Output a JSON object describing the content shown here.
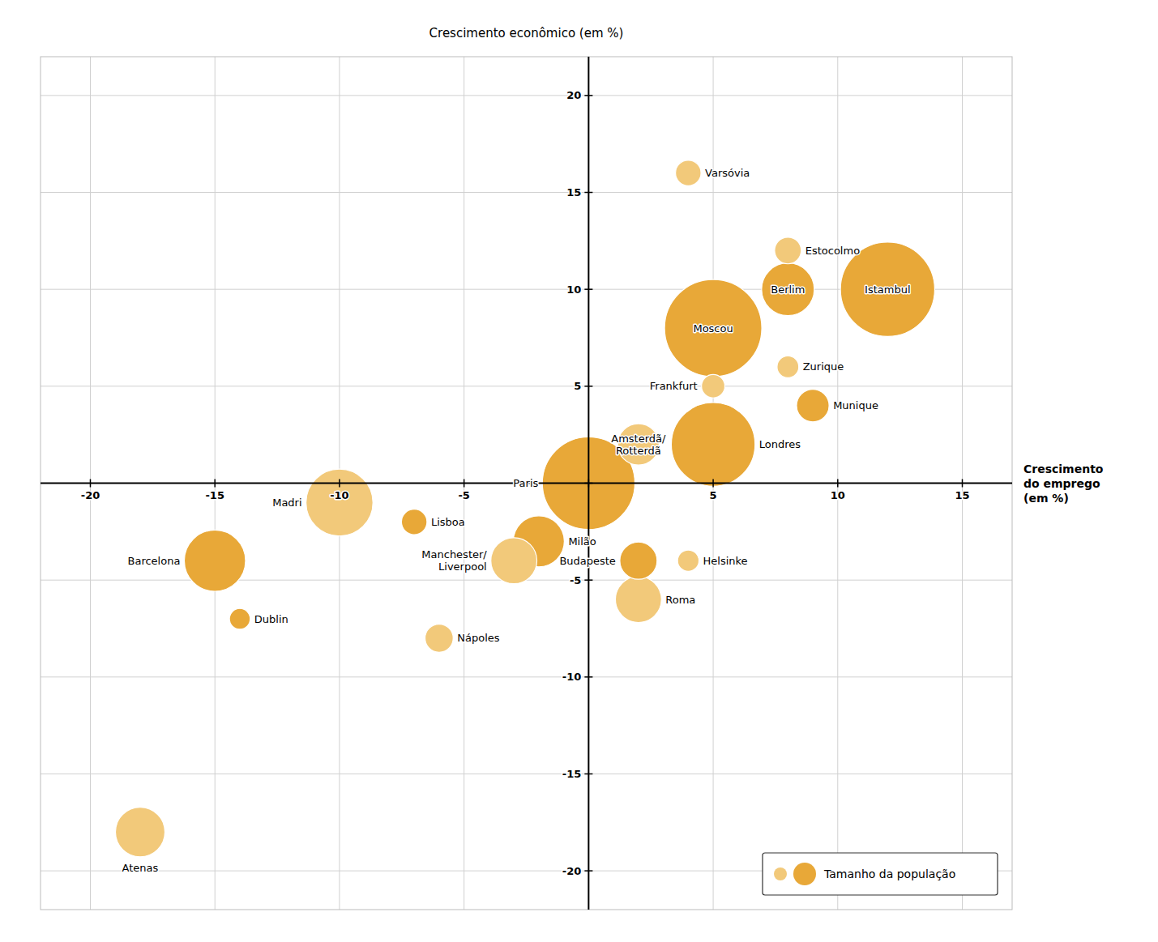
{
  "chart_data": {
    "type": "scatter",
    "ylabel": "Crescimento econômico (em %)",
    "xlabel": "Crescimento\ndo emprego\n(em %)",
    "labels": [
      "Moscou",
      "Istambul",
      "Paris",
      "Londres",
      "Madri",
      "Barcelona",
      "Berlim",
      "Milão",
      "Atenas",
      "Roma",
      "Manchester/\nLiverpool",
      "Amsterdã/\nRotterdã",
      "Budapeste",
      "Munique",
      "Nápoles",
      "Estocolmo",
      "Varsóvia",
      "Lisboa",
      "Frankfurt",
      "Zurique",
      "Helsinke",
      "Dublin"
    ],
    "x": [
      5,
      12,
      0,
      5,
      -10,
      -15,
      8,
      -2,
      -18,
      2,
      -3,
      2,
      2,
      9,
      -6,
      8,
      4,
      -7,
      5,
      8,
      4,
      -14
    ],
    "values": [
      8,
      10,
      0,
      2,
      -1,
      -4,
      10,
      -3,
      -18,
      -6,
      -4,
      2,
      -4,
      4,
      -8,
      12,
      16,
      -2,
      5,
      6,
      -4,
      -7
    ],
    "sizes": [
      11600,
      10900,
      10500,
      8600,
      5500,
      4600,
      3400,
      3200,
      3000,
      2600,
      2600,
      2100,
      1700,
      1300,
      970,
      870,
      800,
      800,
      670,
      580,
      560,
      530
    ],
    "colors": [
      "#E8A838",
      "#E8A838",
      "#E8A838",
      "#E8A838",
      "#F2C97A",
      "#E8A838",
      "#E8A838",
      "#E8A838",
      "#F2C97A",
      "#F2C97A",
      "#F2C97A",
      "#F2C97A",
      "#E8A838",
      "#E8A838",
      "#F2C97A",
      "#F2C97A",
      "#F2C97A",
      "#E8A838",
      "#F2C97A",
      "#F2C97A",
      "#F2C97A",
      "#E8A838"
    ],
    "xlim": [
      -22,
      17
    ],
    "ylim": [
      -22,
      22
    ],
    "xticks": [
      -20,
      -15,
      -10,
      -5,
      {
        "value": 0,
        "label": null
      },
      5,
      10,
      15
    ],
    "yticks": [
      -20,
      -15,
      -10,
      -5,
      {
        "value": 0,
        "label": null
      },
      5,
      10,
      15,
      20
    ],
    "grid": true,
    "legend": "lower right",
    "legend_label": "Tamanho da população",
    "legend_colors": [
      "#F2C97A",
      "#E8A838"
    ]
  }
}
